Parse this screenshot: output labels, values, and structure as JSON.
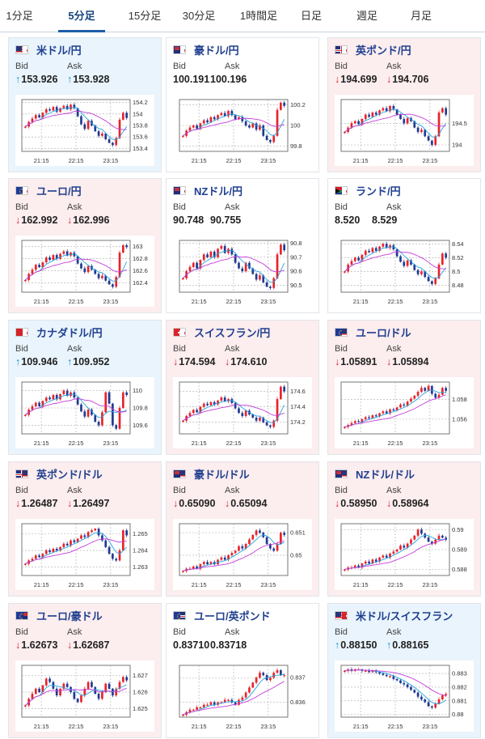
{
  "tabs": [
    {
      "label": "1分足",
      "active": false
    },
    {
      "label": "5分足",
      "active": true
    },
    {
      "label": "15分足",
      "active": false
    },
    {
      "label": "30分足",
      "active": false
    },
    {
      "label": "1時間足",
      "active": false
    },
    {
      "label": "日足",
      "active": false
    },
    {
      "label": "週足",
      "active": false
    },
    {
      "label": "月足",
      "active": false
    }
  ],
  "bid_label": "Bid",
  "ask_label": "Ask",
  "x_ticks": [
    "21:15",
    "22:15",
    "23:15"
  ],
  "colors": {
    "up_bg": "#e9f4fc",
    "down_bg": "#fcedee",
    "candle_up": "#e8232a",
    "candle_down": "#1f3a93",
    "ma_short": "#27a3e0",
    "ma_long": "#c43cd8"
  },
  "cards": [
    {
      "name": "米ドル/円",
      "flag": "us-jp-flag",
      "trend": "up",
      "bid": "153.926",
      "ask": "153.928",
      "y_ticks": [
        "154.2",
        "154",
        "153.8",
        "153.6",
        "153.4"
      ],
      "yr": [
        153.35,
        154.25
      ],
      "closes": [
        153.78,
        153.86,
        153.92,
        153.98,
        153.94,
        154.02,
        154.08,
        154.06,
        154.12,
        154.04,
        154.1,
        154.14,
        154.08,
        154.16,
        154.1,
        153.96,
        153.82,
        153.74,
        153.88,
        153.8,
        153.7,
        153.62,
        153.66,
        153.56,
        153.5,
        153.46,
        153.58,
        153.9,
        154.02,
        153.93
      ]
    },
    {
      "name": "豪ドル/円",
      "flag": "au-jp-flag",
      "trend": "flat",
      "bid": "100.191",
      "ask": "100.196",
      "y_ticks": [
        "100.2",
        "100",
        "99.8"
      ],
      "yr": [
        99.75,
        100.25
      ],
      "closes": [
        99.9,
        99.95,
        99.98,
        100.0,
        99.97,
        100.02,
        100.05,
        100.03,
        100.08,
        100.06,
        100.1,
        100.12,
        100.09,
        100.14,
        100.1,
        100.06,
        100.08,
        100.04,
        100.0,
        99.98,
        100.02,
        99.96,
        100.0,
        99.9,
        99.86,
        99.84,
        99.9,
        100.15,
        100.22,
        100.19
      ]
    },
    {
      "name": "英ポンド/円",
      "flag": "gb-jp-flag",
      "trend": "down",
      "bid": "194.699",
      "ask": "194.706",
      "y_ticks": [
        "194.5",
        "194"
      ],
      "yr": [
        193.85,
        195.05
      ],
      "closes": [
        194.3,
        194.4,
        194.5,
        194.55,
        194.48,
        194.6,
        194.7,
        194.65,
        194.75,
        194.7,
        194.8,
        194.85,
        194.78,
        194.9,
        194.82,
        194.7,
        194.6,
        194.5,
        194.62,
        194.55,
        194.4,
        194.3,
        194.35,
        194.2,
        194.1,
        194.0,
        194.2,
        194.75,
        194.85,
        194.7
      ]
    },
    {
      "name": "ユーロ/円",
      "flag": "eu-jp-flag",
      "trend": "down",
      "bid": "162.992",
      "ask": "162.996",
      "y_ticks": [
        "163",
        "162.8",
        "162.6",
        "162.4"
      ],
      "yr": [
        162.25,
        163.1
      ],
      "closes": [
        162.45,
        162.55,
        162.62,
        162.7,
        162.66,
        162.74,
        162.82,
        162.78,
        162.86,
        162.8,
        162.88,
        162.92,
        162.85,
        162.9,
        162.84,
        162.72,
        162.64,
        162.58,
        162.68,
        162.62,
        162.55,
        162.48,
        162.52,
        162.44,
        162.38,
        162.34,
        162.5,
        162.9,
        163.02,
        162.99
      ]
    },
    {
      "name": "NZドル/円",
      "flag": "nz-jp-flag",
      "trend": "flat",
      "bid": "90.748",
      "ask": "90.755",
      "y_ticks": [
        "90.8",
        "90.7",
        "90.6",
        "90.5"
      ],
      "yr": [
        90.45,
        90.82
      ],
      "closes": [
        90.55,
        90.6,
        90.63,
        90.66,
        90.62,
        90.68,
        90.72,
        90.7,
        90.74,
        90.7,
        90.76,
        90.78,
        90.73,
        90.76,
        90.72,
        90.66,
        90.62,
        90.6,
        90.66,
        90.62,
        90.58,
        90.54,
        90.57,
        90.52,
        90.49,
        90.48,
        90.55,
        90.72,
        90.79,
        90.75
      ]
    },
    {
      "name": "ランド/円",
      "flag": "za-jp-flag",
      "trend": "flat",
      "bid": "8.520",
      "ask": "8.529",
      "y_ticks": [
        "8.54",
        "8.52",
        "8.5",
        "8.48"
      ],
      "yr": [
        8.47,
        8.545
      ],
      "closes": [
        8.5,
        8.51,
        8.515,
        8.52,
        8.516,
        8.524,
        8.53,
        8.528,
        8.534,
        8.53,
        8.536,
        8.54,
        8.534,
        8.538,
        8.532,
        8.522,
        8.514,
        8.508,
        8.516,
        8.51,
        8.502,
        8.496,
        8.5,
        8.492,
        8.486,
        8.482,
        8.49,
        8.51,
        8.526,
        8.52
      ]
    },
    {
      "name": "カナダドル/円",
      "flag": "ca-jp-flag",
      "trend": "up",
      "bid": "109.946",
      "ask": "109.952",
      "y_ticks": [
        "110",
        "109.8",
        "109.6"
      ],
      "yr": [
        109.5,
        110.1
      ],
      "closes": [
        109.72,
        109.78,
        109.82,
        109.86,
        109.82,
        109.88,
        109.92,
        109.9,
        109.95,
        109.9,
        109.96,
        110.0,
        109.94,
        109.98,
        109.92,
        109.84,
        109.76,
        109.7,
        109.78,
        109.72,
        109.64,
        109.6,
        109.75,
        109.98,
        109.85,
        109.6,
        109.56,
        109.8,
        109.98,
        109.95
      ]
    },
    {
      "name": "スイスフラン/円",
      "flag": "ch-jp-flag",
      "trend": "down",
      "bid": "174.594",
      "ask": "174.610",
      "y_ticks": [
        "174.6",
        "174.4",
        "174.2"
      ],
      "yr": [
        174.05,
        174.72
      ],
      "closes": [
        174.22,
        174.28,
        174.32,
        174.36,
        174.33,
        174.4,
        174.44,
        174.42,
        174.46,
        174.43,
        174.48,
        174.52,
        174.47,
        174.5,
        174.45,
        174.38,
        174.32,
        174.28,
        174.35,
        174.3,
        174.26,
        174.22,
        174.26,
        174.2,
        174.16,
        174.14,
        174.22,
        174.5,
        174.66,
        174.6
      ]
    },
    {
      "name": "ユーロ/ドル",
      "flag": "eu-us-flag",
      "trend": "down",
      "bid": "1.05891",
      "ask": "1.05894",
      "y_ticks": [
        "1.058",
        "1.056"
      ],
      "yr": [
        1.0545,
        1.0598
      ],
      "closes": [
        1.0552,
        1.0554,
        1.0556,
        1.0558,
        1.0557,
        1.056,
        1.0562,
        1.0561,
        1.0564,
        1.0563,
        1.0566,
        1.0568,
        1.0566,
        1.057,
        1.0569,
        1.0572,
        1.0575,
        1.0574,
        1.0578,
        1.0581,
        1.0584,
        1.0588,
        1.0592,
        1.0589,
        1.0594,
        1.0586,
        1.0582,
        1.0585,
        1.0592,
        1.0589
      ]
    },
    {
      "name": "英ポンド/ドル",
      "flag": "gb-us-flag",
      "trend": "down",
      "bid": "1.26487",
      "ask": "1.26497",
      "y_ticks": [
        "1.265",
        "1.264",
        "1.263"
      ],
      "yr": [
        1.2625,
        1.2656
      ],
      "closes": [
        1.2632,
        1.2634,
        1.2635,
        1.2637,
        1.2636,
        1.2638,
        1.264,
        1.2639,
        1.2641,
        1.264,
        1.2642,
        1.2644,
        1.2643,
        1.2646,
        1.2645,
        1.2647,
        1.2649,
        1.2648,
        1.2651,
        1.2652,
        1.2653,
        1.2649,
        1.2646,
        1.2642,
        1.2638,
        1.2635,
        1.2634,
        1.264,
        1.2652,
        1.2649
      ]
    },
    {
      "name": "豪ドル/ドル",
      "flag": "au-us-flag",
      "trend": "down",
      "bid": "0.65090",
      "ask": "0.65094",
      "y_ticks": [
        "0.651",
        "0.65"
      ],
      "yr": [
        0.6491,
        0.6514
      ],
      "closes": [
        0.6493,
        0.6494,
        0.6494,
        0.6495,
        0.6494,
        0.6496,
        0.6497,
        0.6496,
        0.6497,
        0.6496,
        0.6498,
        0.6499,
        0.6498,
        0.65,
        0.6501,
        0.6502,
        0.6504,
        0.6503,
        0.6505,
        0.6507,
        0.6509,
        0.6511,
        0.651,
        0.6508,
        0.6505,
        0.6503,
        0.6502,
        0.6505,
        0.651,
        0.6509
      ]
    },
    {
      "name": "NZドル/ドル",
      "flag": "nz-us-flag",
      "trend": "down",
      "bid": "0.58950",
      "ask": "0.58964",
      "y_ticks": [
        "0.59",
        "0.589",
        "0.588"
      ],
      "yr": [
        0.5877,
        0.5903
      ],
      "closes": [
        0.588,
        0.5881,
        0.5881,
        0.5882,
        0.5881,
        0.5883,
        0.5884,
        0.5883,
        0.5885,
        0.5884,
        0.5886,
        0.5887,
        0.5886,
        0.5888,
        0.5889,
        0.589,
        0.5892,
        0.5891,
        0.5893,
        0.5895,
        0.5897,
        0.59,
        0.5898,
        0.5896,
        0.5894,
        0.5893,
        0.5895,
        0.5897,
        0.5896,
        0.5895
      ]
    },
    {
      "name": "ユーロ/豪ドル",
      "flag": "eu-au-flag",
      "trend": "down",
      "bid": "1.62673",
      "ask": "1.62687",
      "y_ticks": [
        "1.627",
        "1.626",
        "1.625"
      ],
      "yr": [
        1.6245,
        1.6276
      ],
      "closes": [
        1.6252,
        1.6256,
        1.6259,
        1.6262,
        1.626,
        1.6264,
        1.6268,
        1.6266,
        1.6262,
        1.6258,
        1.6262,
        1.6265,
        1.6263,
        1.626,
        1.6256,
        1.6254,
        1.6258,
        1.6262,
        1.6266,
        1.6263,
        1.6259,
        1.6256,
        1.626,
        1.6265,
        1.6262,
        1.6258,
        1.6262,
        1.6266,
        1.6269,
        1.6267
      ]
    },
    {
      "name": "ユーロ/英ポンド",
      "flag": "eu-gb-flag",
      "trend": "flat",
      "bid": "0.83710",
      "ask": "0.83718",
      "y_ticks": [
        "0.837",
        "0.836"
      ],
      "yr": [
        0.8354,
        0.8375
      ],
      "closes": [
        0.8355,
        0.8356,
        0.8357,
        0.8357,
        0.8358,
        0.8358,
        0.8359,
        0.8359,
        0.836,
        0.8359,
        0.836,
        0.836,
        0.8361,
        0.8361,
        0.836,
        0.8359,
        0.8361,
        0.8362,
        0.8364,
        0.8366,
        0.8368,
        0.837,
        0.8372,
        0.8371,
        0.8369,
        0.837,
        0.8372,
        0.8373,
        0.8371,
        0.8371
      ]
    },
    {
      "name": "米ドル/スイスフラン",
      "flag": "us-ch-flag",
      "trend": "up",
      "bid": "0.88150",
      "ask": "0.88165",
      "y_ticks": [
        "0.883",
        "0.882",
        "0.881",
        "0.88"
      ],
      "yr": [
        0.8798,
        0.8836
      ],
      "closes": [
        0.8832,
        0.8833,
        0.8832,
        0.8833,
        0.8833,
        0.8832,
        0.8832,
        0.8831,
        0.8832,
        0.8831,
        0.883,
        0.8829,
        0.8828,
        0.8828,
        0.8826,
        0.8825,
        0.8823,
        0.8822,
        0.882,
        0.8818,
        0.8816,
        0.8813,
        0.8811,
        0.8809,
        0.8806,
        0.8805,
        0.8808,
        0.8811,
        0.8814,
        0.8815
      ]
    }
  ]
}
